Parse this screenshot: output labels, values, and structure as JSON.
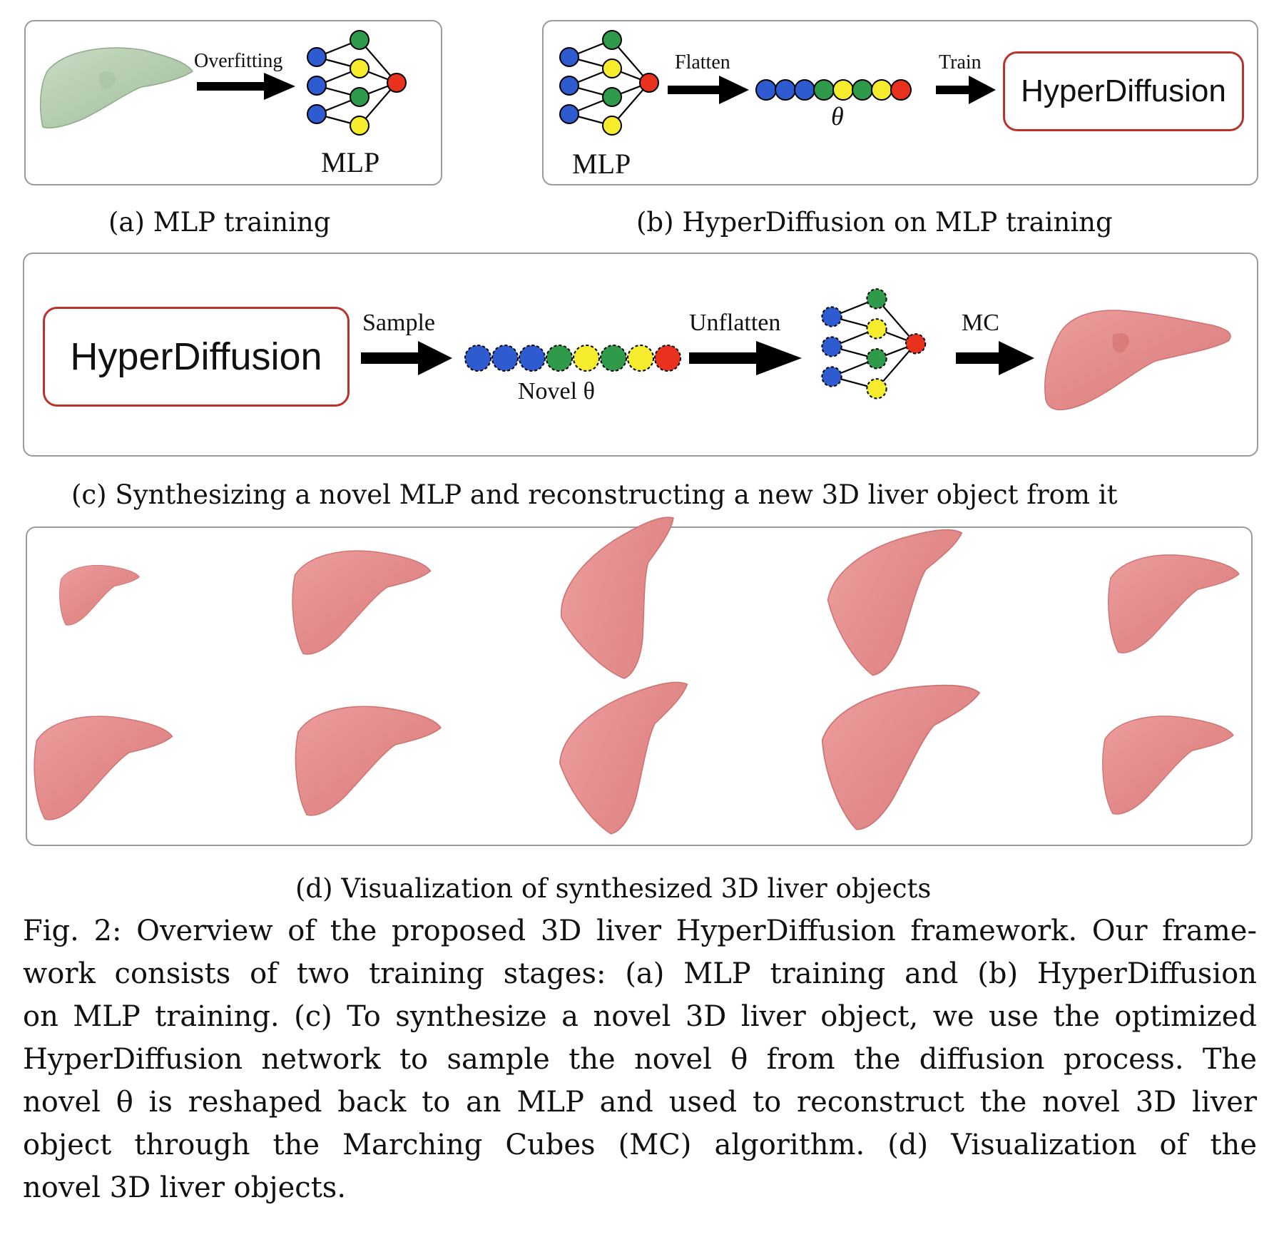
{
  "panel_a": {
    "arrow_label": "Overfitting",
    "mlp_label": "MLP",
    "caption": "(a) MLP training"
  },
  "panel_b": {
    "flatten_label": "Flatten",
    "theta_label": "θ",
    "train_label": "Train",
    "mlp_label": "MLP",
    "hyperdiffusion": "HyperDiffusion",
    "caption": "(b) HyperDiffusion on MLP training"
  },
  "panel_c": {
    "hyperdiffusion": "HyperDiffusion",
    "sample_label": "Sample",
    "novel_theta_label": "Novel θ",
    "unflatten_label": "Unflatten",
    "mc_label": "MC",
    "caption": "(c) Synthesizing a novel MLP and reconstructing a new 3D liver object from it"
  },
  "panel_d": {
    "caption": "(d) Visualization of synthesized 3D liver objects"
  },
  "figure_caption": {
    "lines": [
      "Fig. 2: Overview of the proposed 3D liver HyperDiffusion framework. Our frame-",
      "work consists of two training stages: (a) MLP training and (b) HyperDiffusion",
      "on MLP training. (c) To synthesize a novel 3D liver object, we use the optimized",
      "HyperDiffusion network to sample the novel θ from the diffusion process. The",
      "novel θ is reshaped back to an MLP and used to reconstruct the novel 3D liver",
      "object through the Marching Cubes (MC) algorithm. (d) Visualization of the",
      "novel 3D liver objects."
    ]
  },
  "colors": {
    "node_blue": "#2f5bd0",
    "node_green": "#2e9a4a",
    "node_yellow": "#f5ec2e",
    "node_red": "#e8321e",
    "liver_green": "#b6cdb1",
    "liver_pink": "#e38a8b",
    "hyperdiffusion_border": "#b8332a"
  }
}
